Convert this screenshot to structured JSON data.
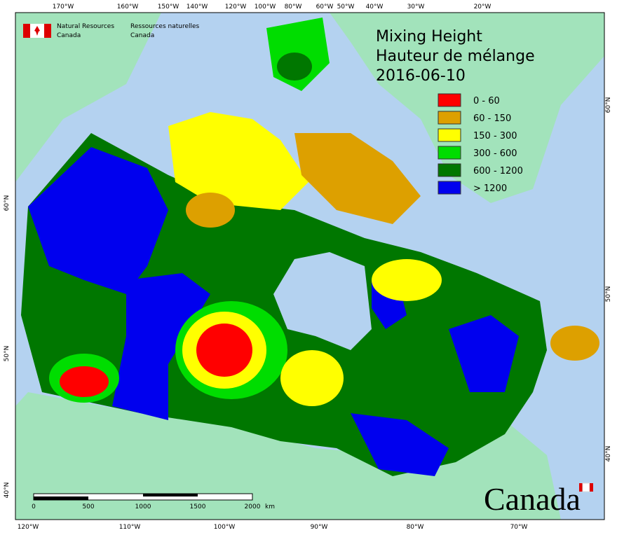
{
  "header": {
    "org_en": [
      "Natural Resources",
      "Canada"
    ],
    "org_fr": [
      "Ressources naturelles",
      "Canada"
    ]
  },
  "title": [
    "Mixing Height",
    "Hauteur de mélange",
    "2016-06-10"
  ],
  "legend": [
    {
      "label": "0 - 60",
      "color": "#ff0000"
    },
    {
      "label": "60 - 150",
      "color": "#dda000"
    },
    {
      "label": "150 - 300",
      "color": "#ffff00"
    },
    {
      "label": "300 - 600",
      "color": "#00dd00"
    },
    {
      "label": "600 - 1200",
      "color": "#007700"
    },
    {
      "label": "> 1200",
      "color": "#0000ee"
    }
  ],
  "top_longitudes": [
    "170°W",
    "160°W",
    "150°W",
    "140°W",
    "120°W",
    "100°W",
    "80°W",
    "60°W",
    "50°W",
    "40°W",
    "30°W",
    "20°W"
  ],
  "bottom_longitudes": [
    "120°W",
    "110°W",
    "100°W",
    "90°W",
    "80°W",
    "70°W"
  ],
  "left_latitudes": [
    "60°N",
    "50°N",
    "40°N"
  ],
  "right_latitudes": [
    "60°N",
    "50°N",
    "40°N"
  ],
  "scale_bar": {
    "labels": [
      "0",
      "500",
      "1000",
      "1500",
      "2000"
    ],
    "unit": "km"
  },
  "wordmark": "Canada"
}
